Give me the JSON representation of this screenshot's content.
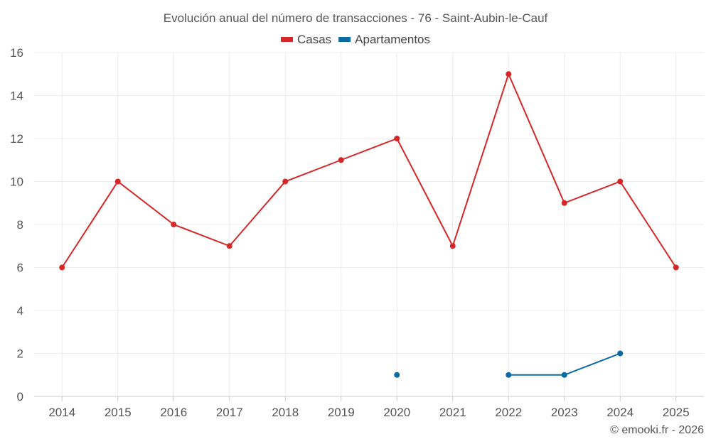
{
  "chart_data": {
    "type": "line",
    "title": "Evolución anual del número de transacciones - 76 - Saint-Aubin-le-Cauf",
    "categories": [
      "2014",
      "2015",
      "2016",
      "2017",
      "2018",
      "2019",
      "2020",
      "2021",
      "2022",
      "2023",
      "2024",
      "2025"
    ],
    "series": [
      {
        "name": "Casas",
        "color": "#d62728",
        "values": [
          6,
          10,
          8,
          7,
          10,
          11,
          12,
          7,
          15,
          9,
          10,
          6
        ]
      },
      {
        "name": "Apartamentos",
        "color": "#0b6aa2",
        "values": [
          null,
          null,
          null,
          null,
          null,
          null,
          1,
          null,
          1,
          1,
          2,
          null
        ]
      }
    ],
    "ylim": [
      0,
      16
    ],
    "yticks": [
      0,
      2,
      4,
      6,
      8,
      10,
      12,
      14,
      16
    ],
    "xlabel": "",
    "ylabel": "",
    "grid": true,
    "legend": "top-center"
  },
  "credit": "© emooki.fr - 2026"
}
